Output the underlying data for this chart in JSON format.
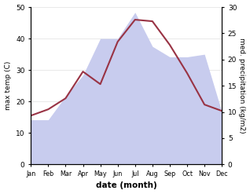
{
  "months": [
    "Jan",
    "Feb",
    "Mar",
    "Apr",
    "May",
    "Jun",
    "Jul",
    "Aug",
    "Sep",
    "Oct",
    "Nov",
    "Dec"
  ],
  "temp": [
    15.5,
    17.5,
    21.0,
    29.5,
    25.5,
    39.0,
    46.0,
    45.5,
    38.0,
    29.0,
    19.0,
    17.0
  ],
  "precip": [
    8.5,
    8.5,
    13.0,
    17.0,
    24.0,
    24.0,
    29.0,
    22.5,
    20.5,
    20.5,
    21.0,
    10.0
  ],
  "temp_color": "#993344",
  "precip_fill_color": "#c8ccee",
  "temp_ylim": [
    0,
    50
  ],
  "precip_ylim": [
    0,
    30
  ],
  "ylabel_left": "max temp (C)",
  "ylabel_right": "med. precipitation (kg/m2)",
  "xlabel": "date (month)",
  "bg_color": "#ffffff",
  "grid_color": "#e0e0e0",
  "temp_linewidth": 1.5
}
